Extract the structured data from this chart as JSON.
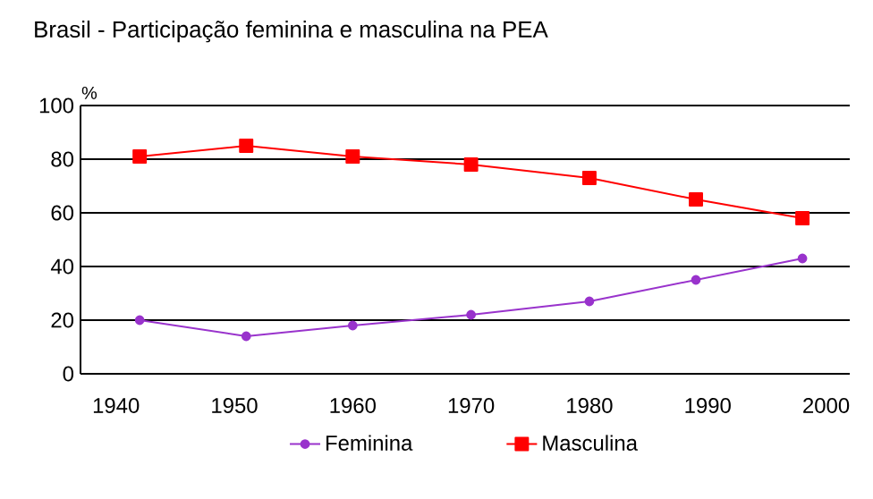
{
  "chart_data": {
    "type": "line",
    "title": "Brasil - Participação feminina e masculina na PEA",
    "ylabel": "%",
    "x": [
      1942,
      1951,
      1960,
      1970,
      1980,
      1989,
      1998
    ],
    "series": [
      {
        "name": "Feminina",
        "color": "#9933cc",
        "marker": "circle",
        "values": [
          20,
          14,
          18,
          22,
          27,
          35,
          43
        ]
      },
      {
        "name": "Masculina",
        "color": "#ff0000",
        "marker": "square",
        "values": [
          81,
          85,
          81,
          78,
          73,
          65,
          58
        ]
      }
    ],
    "xlim": [
      1937,
      2002
    ],
    "ylim": [
      0,
      100
    ],
    "xticks": [
      1940,
      1950,
      1960,
      1970,
      1980,
      1990,
      2000
    ],
    "yticks": [
      0,
      20,
      40,
      60,
      80,
      100
    ],
    "grid": "y",
    "legend": "bottom"
  }
}
